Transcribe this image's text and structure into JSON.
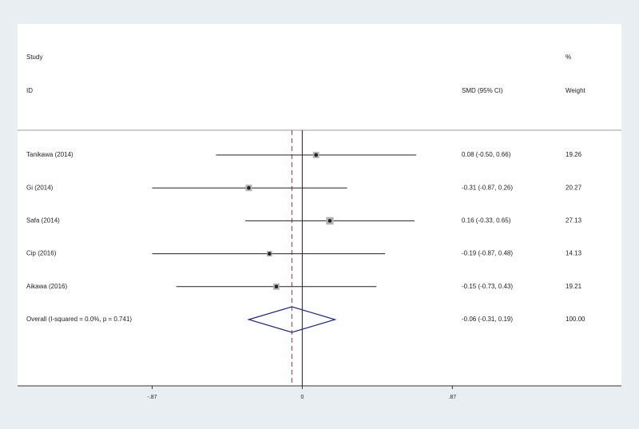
{
  "chart_data": {
    "type": "forest",
    "headers": {
      "study_top": "Study",
      "study": "ID",
      "effect": "SMD (95% CI)",
      "weight_top": "%",
      "weight": "Weight"
    },
    "studies": [
      {
        "name": "Tanikawa  (2014)",
        "value": 0.08,
        "ci": [
          -0.5,
          0.66
        ],
        "value_label": "0.08 (-0.50, 0.66)",
        "weight": 19.26
      },
      {
        "name": "Gi (2014)",
        "value": -0.31,
        "ci": [
          -0.87,
          0.26
        ],
        "value_label": "-0.31 (-0.87, 0.26)",
        "weight": 20.27
      },
      {
        "name": "Safa (2014)",
        "value": 0.16,
        "ci": [
          -0.33,
          0.65
        ],
        "value_label": "0.16 (-0.33, 0.65)",
        "weight": 27.13
      },
      {
        "name": "Cip  (2016)",
        "value": -0.19,
        "ci": [
          -0.87,
          0.48
        ],
        "value_label": "-0.19 (-0.87, 0.48)",
        "weight": 14.13
      },
      {
        "name": "Aikawa (2016)",
        "value": -0.15,
        "ci": [
          -0.73,
          0.43
        ],
        "value_label": "-0.15 (-0.73, 0.43)",
        "weight": 19.21
      }
    ],
    "overall": {
      "name": "Overall  (I-squared = 0.0%, p = 0.741)",
      "value": -0.06,
      "ci": [
        -0.31,
        0.19
      ],
      "value_label": "-0.06 (-0.31, 0.19)",
      "weight": {
        "value": 100,
        "label": "100.00"
      }
    },
    "xlim": [
      -1.65,
      1.85
    ],
    "xticks": [
      {
        "value": -0.87,
        "label": "-.87"
      },
      0,
      {
        "value": 0.87,
        "label": ".87"
      }
    ],
    "null_line": 0,
    "colors": {
      "square": "#b4b4b4",
      "diamond": "#1f2a7a",
      "overall_line": "#b03040"
    }
  }
}
